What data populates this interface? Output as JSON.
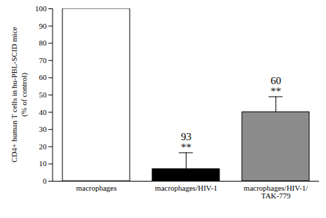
{
  "chart_data": {
    "type": "bar",
    "y_label": "CD4+ human T cells in hu-PBL-SCID mice\n(% of control)",
    "categories": [
      "macrophages",
      "macrophages/HIV-1",
      "macrophages/HIV-1/TAK-779"
    ],
    "values": [
      100,
      7,
      40
    ],
    "errors": [
      null,
      9.5,
      9
    ],
    "annotations": [
      null,
      [
        "93",
        "**"
      ],
      [
        "60",
        "**"
      ]
    ],
    "colors": [
      "#ffffff",
      "#000000",
      "#8c8c8c"
    ],
    "ylim": [
      0,
      100
    ],
    "yticks": [
      0,
      10,
      20,
      30,
      40,
      50,
      60,
      70,
      80,
      90,
      100
    ],
    "grid": false
  }
}
